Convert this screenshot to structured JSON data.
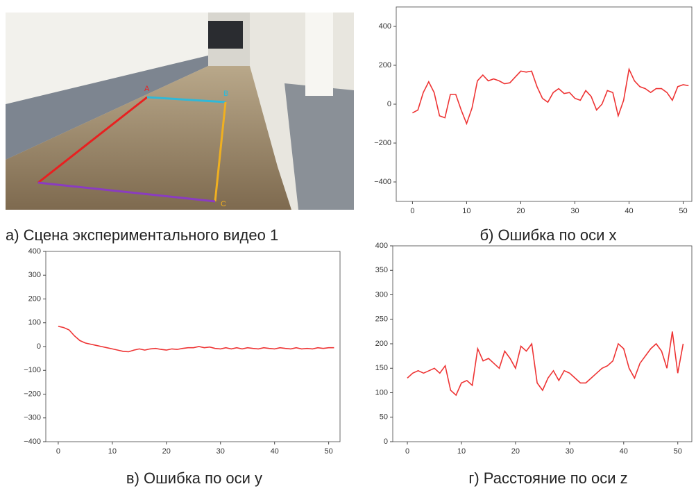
{
  "photo": {
    "labels": [
      "A",
      "B",
      "C"
    ],
    "caption": "а) Сцена экспериментального видео 1"
  },
  "chart_data": [
    {
      "type": "line",
      "title": "б) Ошибка по оси x",
      "x": [
        0,
        1,
        2,
        3,
        4,
        5,
        6,
        7,
        8,
        9,
        10,
        11,
        12,
        13,
        14,
        15,
        16,
        17,
        18,
        19,
        20,
        21,
        22,
        23,
        24,
        25,
        26,
        27,
        28,
        29,
        30,
        31,
        32,
        33,
        34,
        35,
        36,
        37,
        38,
        39,
        40,
        41,
        42,
        43,
        44,
        45,
        46,
        47,
        48,
        49,
        50,
        51
      ],
      "series": [
        {
          "color": "#ee3333",
          "values": [
            -45,
            -30,
            60,
            115,
            60,
            -60,
            -70,
            50,
            50,
            -30,
            -100,
            -20,
            120,
            150,
            120,
            130,
            120,
            105,
            110,
            140,
            170,
            165,
            170,
            90,
            30,
            10,
            60,
            80,
            55,
            60,
            30,
            20,
            70,
            40,
            -30,
            0,
            70,
            60,
            -60,
            20,
            180,
            120,
            90,
            80,
            60,
            80,
            80,
            60,
            20,
            90,
            100,
            95
          ]
        }
      ],
      "xlim": [
        -3,
        51.6
      ],
      "ylim": [
        -500,
        500
      ],
      "xticks": [
        0,
        10,
        20,
        30,
        40,
        50
      ],
      "yticks": [
        {
          "value": -400,
          "label": "−400"
        },
        {
          "value": -200,
          "label": "−200"
        },
        0,
        200,
        400
      ]
    },
    {
      "type": "line",
      "title": "в) Ошибка по оси y",
      "x": [
        0,
        1,
        2,
        3,
        4,
        5,
        6,
        7,
        8,
        9,
        10,
        11,
        12,
        13,
        14,
        15,
        16,
        17,
        18,
        19,
        20,
        21,
        22,
        23,
        24,
        25,
        26,
        27,
        28,
        29,
        30,
        31,
        32,
        33,
        34,
        35,
        36,
        37,
        38,
        39,
        40,
        41,
        42,
        43,
        44,
        45,
        46,
        47,
        48,
        49,
        50,
        51
      ],
      "series": [
        {
          "color": "#ee3333",
          "values": [
            85,
            80,
            70,
            45,
            25,
            15,
            10,
            5,
            0,
            -5,
            -10,
            -15,
            -20,
            -22,
            -15,
            -10,
            -15,
            -10,
            -8,
            -12,
            -15,
            -10,
            -12,
            -8,
            -5,
            -5,
            0,
            -5,
            -2,
            -8,
            -10,
            -5,
            -10,
            -5,
            -10,
            -5,
            -8,
            -10,
            -5,
            -8,
            -10,
            -5,
            -8,
            -10,
            -5,
            -10,
            -8,
            -10,
            -5,
            -8,
            -5,
            -5
          ]
        }
      ],
      "xlim": [
        -2.3,
        52.1
      ],
      "ylim": [
        -400,
        400
      ],
      "xticks": [
        0,
        10,
        20,
        30,
        40,
        50
      ],
      "yticks": [
        {
          "value": -400,
          "label": "−400"
        },
        {
          "value": -300,
          "label": "−300"
        },
        {
          "value": -200,
          "label": "−200"
        },
        {
          "value": -100,
          "label": "−100"
        },
        0,
        100,
        200,
        300,
        400
      ]
    },
    {
      "type": "line",
      "title": "г) Расстояние по оси z",
      "x": [
        0,
        1,
        2,
        3,
        4,
        5,
        6,
        7,
        8,
        9,
        10,
        11,
        12,
        13,
        14,
        15,
        16,
        17,
        18,
        19,
        20,
        21,
        22,
        23,
        24,
        25,
        26,
        27,
        28,
        29,
        30,
        31,
        32,
        33,
        34,
        35,
        36,
        37,
        38,
        39,
        40,
        41,
        42,
        43,
        44,
        45,
        46,
        47,
        48,
        49,
        50,
        51
      ],
      "series": [
        {
          "color": "#ee3333",
          "values": [
            130,
            140,
            145,
            140,
            145,
            150,
            140,
            155,
            105,
            95,
            120,
            125,
            115,
            190,
            165,
            170,
            160,
            150,
            185,
            170,
            150,
            195,
            185,
            200,
            120,
            105,
            130,
            145,
            125,
            145,
            140,
            130,
            120,
            120,
            130,
            140,
            150,
            155,
            165,
            200,
            190,
            150,
            130,
            160,
            175,
            190,
            200,
            185,
            150,
            225,
            140,
            200
          ]
        }
      ],
      "xlim": [
        -2.7,
        52.6
      ],
      "ylim": [
        0,
        400
      ],
      "xticks": [
        0,
        10,
        20,
        30,
        40,
        50
      ],
      "yticks": [
        0,
        50,
        100,
        150,
        200,
        250,
        300,
        350,
        400
      ]
    }
  ]
}
